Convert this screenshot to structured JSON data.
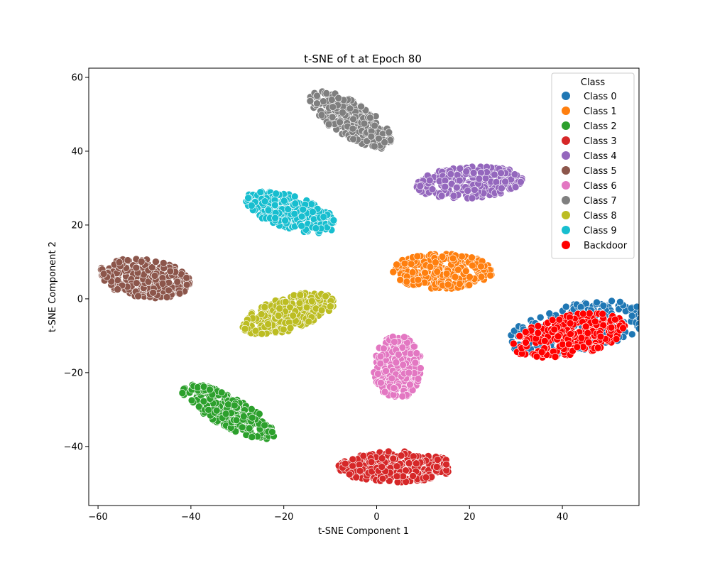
{
  "chart_data": {
    "type": "scatter",
    "title": "t-SNE of t at Epoch 80",
    "xlabel": "t-SNE Component 1",
    "ylabel": "t-SNE Component 2",
    "xlim": [
      -62,
      56.5
    ],
    "ylim": [
      -56,
      62.5
    ],
    "xticks": [
      -60,
      -40,
      -20,
      0,
      20,
      40
    ],
    "yticks": [
      -40,
      -20,
      0,
      20,
      40,
      60
    ],
    "grid": false,
    "legend": {
      "title": "Class",
      "position": "top-right"
    },
    "series": [
      {
        "name": "Class 0",
        "color": "#1f77b4",
        "cluster": {
          "center": [
            43.5,
            -8
          ],
          "half_axes": [
            6.5,
            15.5
          ],
          "angle_deg": -75
        }
      },
      {
        "name": "Class 1",
        "color": "#ff7f0e",
        "cluster": {
          "center": [
            14,
            7.5
          ],
          "half_axes": [
            11,
            4.8
          ],
          "angle_deg": 0
        }
      },
      {
        "name": "Class 2",
        "color": "#2ca02c",
        "cluster": {
          "center": [
            -32,
            -30.5
          ],
          "half_axes": [
            12,
            3.8
          ],
          "angle_deg": -35
        }
      },
      {
        "name": "Class 3",
        "color": "#d62728",
        "cluster": {
          "center": [
            4,
            -45.5
          ],
          "half_axes": [
            12.5,
            4.2
          ],
          "angle_deg": 0
        }
      },
      {
        "name": "Class 4",
        "color": "#9467bd",
        "cluster": {
          "center": [
            20,
            31.5
          ],
          "half_axes": [
            11.5,
            4.3
          ],
          "angle_deg": 5
        }
      },
      {
        "name": "Class 5",
        "color": "#8c564b",
        "cluster": {
          "center": [
            -50,
            5.5
          ],
          "half_axes": [
            10,
            5.2
          ],
          "angle_deg": -10
        }
      },
      {
        "name": "Class 6",
        "color": "#e377c2",
        "cluster": {
          "center": [
            4.5,
            -18.5
          ],
          "half_axes": [
            5.2,
            8.5
          ],
          "angle_deg": 0
        }
      },
      {
        "name": "Class 7",
        "color": "#7f7f7f",
        "cluster": {
          "center": [
            -5.5,
            48.5
          ],
          "half_axes": [
            11,
            4.4
          ],
          "angle_deg": -40
        }
      },
      {
        "name": "Class 8",
        "color": "#bcbd22",
        "cluster": {
          "center": [
            -19,
            -4
          ],
          "half_axes": [
            10.5,
            4.5
          ],
          "angle_deg": 22
        }
      },
      {
        "name": "Class 9",
        "color": "#17becf",
        "cluster": {
          "center": [
            -18.5,
            23.5
          ],
          "half_axes": [
            10.5,
            4.4
          ],
          "angle_deg": -22
        }
      },
      {
        "name": "Backdoor",
        "color": "#ff0000",
        "cluster": {
          "center": [
            41.5,
            -10
          ],
          "half_axes": [
            5.5,
            12.5
          ],
          "angle_deg": -75
        }
      }
    ]
  }
}
